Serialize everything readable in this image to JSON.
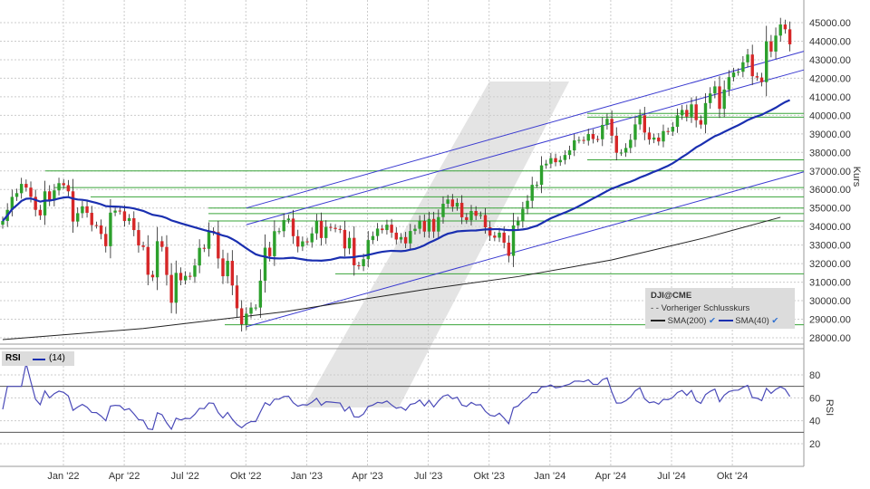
{
  "chart_data": [
    {
      "type": "candlestick",
      "symbol": "DJI@CME",
      "ylabel": "Kurs",
      "ylim": [
        27500,
        45500
      ],
      "yticks": [
        "28000.00",
        "29000.00",
        "30000.00",
        "31000.00",
        "32000.00",
        "33000.00",
        "34000.00",
        "35000.00",
        "36000.00",
        "37000.00",
        "38000.00",
        "39000.00",
        "40000.00",
        "41000.00",
        "42000.00",
        "43000.00",
        "44000.00",
        "45000.00"
      ],
      "xticks": [
        "Jan '22",
        "Apr '22",
        "Jul '22",
        "Okt '22",
        "Jan '23",
        "Apr '23",
        "Jul '23",
        "Okt '23",
        "Jan '24",
        "Apr '24",
        "Jul '24",
        "Okt '24"
      ],
      "interval": "weekly",
      "start": "Okt '21",
      "weekly_close": [
        34300,
        34900,
        35600,
        35800,
        36300,
        36100,
        35600,
        34900,
        34600,
        35900,
        35400,
        35950,
        36340,
        36230,
        35900,
        34270,
        34720,
        35090,
        34740,
        34080,
        34060,
        33600,
        32940,
        34750,
        34860,
        34820,
        34300,
        34450,
        33810,
        32980,
        32900,
        31400,
        31260,
        33210,
        32900,
        31390,
        29890,
        31500,
        31100,
        31340,
        31290,
        31900,
        32850,
        32800,
        33760,
        33700,
        32280,
        31320,
        32150,
        30820,
        29590,
        28730,
        29300,
        29630,
        29630,
        31080,
        32860,
        32400,
        33750,
        33750,
        34350,
        34430,
        33480,
        32920,
        33200,
        33150,
        33630,
        34300,
        33380,
        33980,
        33930,
        33870,
        33820,
        32820,
        33390,
        31910,
        31860,
        32240,
        33270,
        33490,
        33890,
        33810,
        34100,
        33670,
        33300,
        33430,
        33090,
        33760,
        33880,
        34300,
        33730,
        34410,
        33730,
        34510,
        35230,
        35460,
        35070,
        35280,
        34500,
        34350,
        34840,
        34580,
        34620,
        33960,
        33510,
        33400,
        33670,
        33130,
        32420,
        34060,
        34280,
        34950,
        35390,
        36250,
        36250,
        37300,
        37390,
        37690,
        37470,
        37590,
        37860,
        38110,
        38650,
        38670,
        38630,
        38990,
        38720,
        38710,
        39480,
        39810,
        38900,
        37980,
        37990,
        38240,
        38680,
        39510,
        40000,
        39070,
        38690,
        38800,
        38590,
        39150,
        39120,
        39380,
        40000,
        40290,
        39930,
        40590,
        39740,
        39500,
        40660,
        41180,
        41560,
        40350,
        41390,
        42060,
        42310,
        42350,
        42860,
        43280,
        42110,
        42040,
        41790,
        43990,
        43440,
        44300,
        44900,
        44640,
        43830
      ],
      "sma200_points": [
        [
          0,
          27900
        ],
        [
          30,
          28500
        ],
        [
          60,
          29400
        ],
        [
          90,
          30600
        ],
        [
          110,
          31300
        ],
        [
          130,
          32200
        ],
        [
          150,
          33400
        ],
        [
          166,
          34500
        ]
      ],
      "support_levels": [
        40100,
        39900,
        37600,
        37000,
        36100,
        35600,
        35000,
        34700,
        34300,
        31450,
        28700
      ],
      "trend_channel": {
        "upper": [
          [
            52,
            35000
          ],
          [
            166,
            43100
          ]
        ],
        "upper2": [
          [
            52,
            34100
          ],
          [
            166,
            42100
          ]
        ],
        "lower": [
          [
            52,
            28600
          ],
          [
            166,
            36600
          ]
        ]
      },
      "legend": {
        "title": "DJI@CME",
        "prev_close": "Vorheriger Schlusskurs",
        "sma200": "SMA(200)",
        "sma40": "SMA(40)"
      },
      "colors": {
        "up": "#2ca02c",
        "down": "#d62728",
        "sma40": "#1a2fb0",
        "sma200": "#222222",
        "support": "#3aa53a",
        "channel": "#3a3ad0",
        "rsi": "#4a4ab8"
      }
    },
    {
      "type": "line",
      "title": "RSI",
      "period": "(14)",
      "ylabel": "RSI",
      "ylim": [
        5,
        95
      ],
      "yticks": [
        "20",
        "40",
        "60",
        "80"
      ],
      "levels": [
        70,
        30
      ]
    }
  ]
}
